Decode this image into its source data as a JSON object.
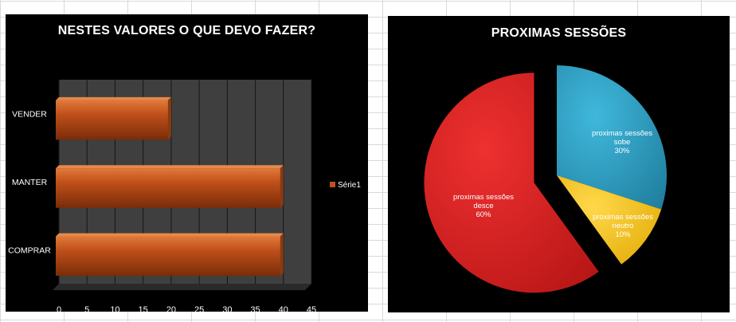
{
  "chart_data": [
    {
      "type": "bar",
      "orientation": "horizontal",
      "title": "NESTES VALORES O QUE DEVO FAZER?",
      "categories": [
        "COMPRAR",
        "MANTER",
        "VENDER"
      ],
      "series": [
        {
          "name": "Série1",
          "values": [
            40,
            40,
            20
          ]
        }
      ],
      "xlim": [
        0,
        45
      ],
      "xticks": [
        "0",
        "5",
        "10",
        "15",
        "20",
        "25",
        "30",
        "35",
        "40",
        "45"
      ],
      "grid": true,
      "legend": "right",
      "colors": {
        "bar": "#c0501a",
        "bar_dark": "#7a2c08",
        "plot_bg": "#3f3f3f",
        "grid": "#161616"
      }
    },
    {
      "type": "pie",
      "title": "PROXIMAS SESSÕES",
      "slices": [
        {
          "label": "proximas sessões sobe",
          "value": 30,
          "pct": "30%",
          "color": "#2f9fc6"
        },
        {
          "label": "proximas sessões neutro",
          "value": 10,
          "pct": "10%",
          "color": "#f2c000"
        },
        {
          "label": "proximas sessões desce",
          "value": 60,
          "pct": "60%",
          "color": "#d81e1e"
        }
      ],
      "exploded": "proximas sessões desce",
      "legend": "none"
    }
  ]
}
